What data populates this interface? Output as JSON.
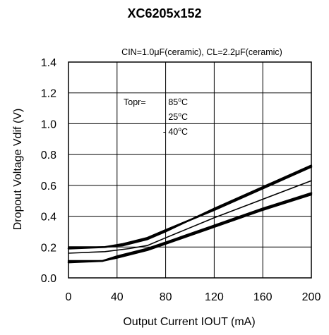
{
  "chart_data": {
    "type": "line",
    "title": "XC6205x152",
    "subtitle": "CIN=1.0μF(ceramic), CL=2.2μF(ceramic)",
    "xlabel": "Output Current IOUT (mA)",
    "ylabel": "Dropout Voltage Vdif (V)",
    "xlim": [
      0,
      200
    ],
    "ylim": [
      0,
      1.4
    ],
    "x_ticks": [
      0,
      40,
      80,
      120,
      160,
      200
    ],
    "x_tick_labels": [
      "0",
      "40",
      "80",
      "120",
      "160",
      "200"
    ],
    "y_ticks": [
      0,
      0.2,
      0.4,
      0.6,
      0.8,
      1.0,
      1.2,
      1.4
    ],
    "y_tick_labels": [
      "0.0",
      "0.2",
      "0.4",
      "0.6",
      "0.8",
      "1.0",
      "1.2",
      "1.4"
    ],
    "grid": true,
    "legend": {
      "prefix": "Topr=",
      "entries": [
        {
          "value": "85",
          "unit": "C"
        },
        {
          "value": "25",
          "unit": "C"
        },
        {
          "value": "- 40",
          "unit": "C"
        }
      ]
    },
    "series": [
      {
        "x": [
          0,
          30,
          45,
          65,
          80,
          120,
          160,
          200
        ],
        "values": [
          0.19,
          0.2,
          0.22,
          0.26,
          0.31,
          0.44,
          0.58,
          0.72
        ],
        "stroke": 2.6
      },
      {
        "x": [
          0,
          30,
          45,
          65,
          80,
          120,
          160,
          200
        ],
        "values": [
          0.2,
          0.2,
          0.21,
          0.25,
          0.3,
          0.45,
          0.59,
          0.73
        ],
        "stroke": 2.2
      },
      {
        "x": [
          0,
          30,
          50,
          65,
          80,
          120,
          160,
          200
        ],
        "values": [
          0.16,
          0.17,
          0.19,
          0.21,
          0.26,
          0.39,
          0.51,
          0.63
        ],
        "stroke": 1.6
      },
      {
        "x": [
          0,
          28,
          40,
          65,
          80,
          120,
          160,
          200
        ],
        "values": [
          0.1,
          0.11,
          0.14,
          0.19,
          0.23,
          0.34,
          0.45,
          0.55
        ],
        "stroke": 2.6
      },
      {
        "x": [
          0,
          28,
          40,
          65,
          80,
          120,
          160,
          200
        ],
        "values": [
          0.11,
          0.11,
          0.13,
          0.18,
          0.22,
          0.33,
          0.44,
          0.54
        ],
        "stroke": 2.4
      }
    ]
  }
}
